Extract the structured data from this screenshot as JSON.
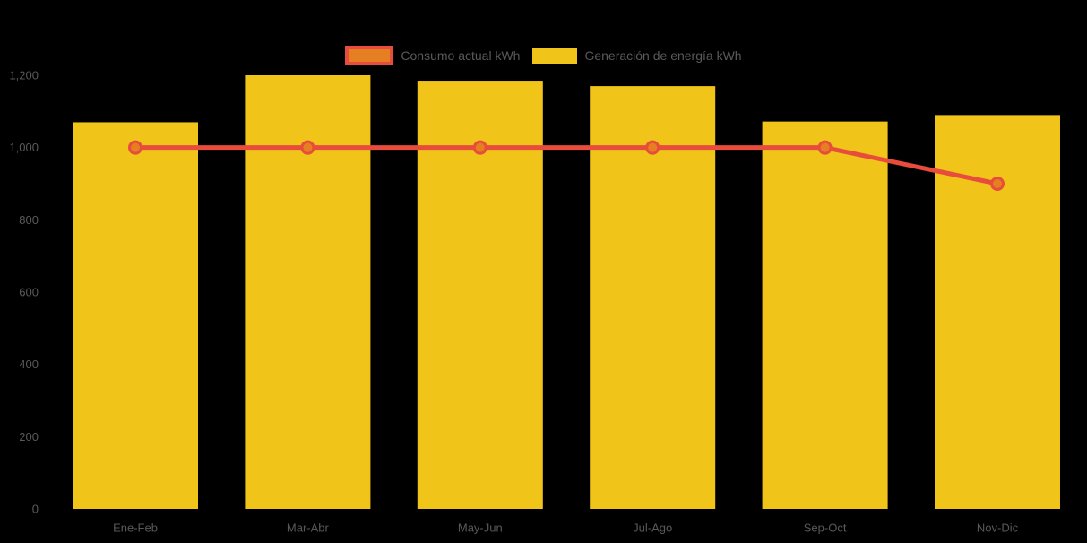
{
  "colors": {
    "background": "#000000",
    "bar_yellow": "#F0C419",
    "line_red": "#E74C3C",
    "marker_orange": "#E67E22",
    "axis_text": "#595959",
    "legend_text": "#595959"
  },
  "legend": {
    "items": [
      {
        "label": "Consumo actual kWh",
        "swatch_fill": "#E67E22",
        "swatch_border": "#E74C3C",
        "series_type": "line"
      },
      {
        "label": "Generación de energía kWh",
        "swatch_fill": "#F0C419",
        "swatch_border": "",
        "series_type": "bar"
      }
    ]
  },
  "chart_data": {
    "type": "bar",
    "subtype": "bar+line combo",
    "title": "",
    "xlabel": "",
    "ylabel": "",
    "categories": [
      "Ene-Feb",
      "Mar-Abr",
      "May-Jun",
      "Jul-Ago",
      "Sep-Oct",
      "Nov-Dic"
    ],
    "series": [
      {
        "name": "Generación de energía kWh",
        "type": "bar",
        "color": "#F0C419",
        "values": [
          1070,
          1200,
          1185,
          1170,
          1072,
          1090
        ]
      },
      {
        "name": "Consumo actual kWh",
        "type": "line",
        "color": "#E74C3C",
        "marker_fill": "#E67E22",
        "values": [
          1000,
          1000,
          1000,
          1000,
          1000,
          900
        ]
      }
    ],
    "ylim": [
      0,
      1200
    ],
    "yticks": [
      0,
      200,
      400,
      600,
      800,
      1000,
      1200
    ],
    "ytick_labels": [
      "0",
      "200",
      "400",
      "600",
      "800",
      "1,000",
      "1,200"
    ],
    "grid": false,
    "axis_lines": false,
    "legend_position": "top-center"
  }
}
